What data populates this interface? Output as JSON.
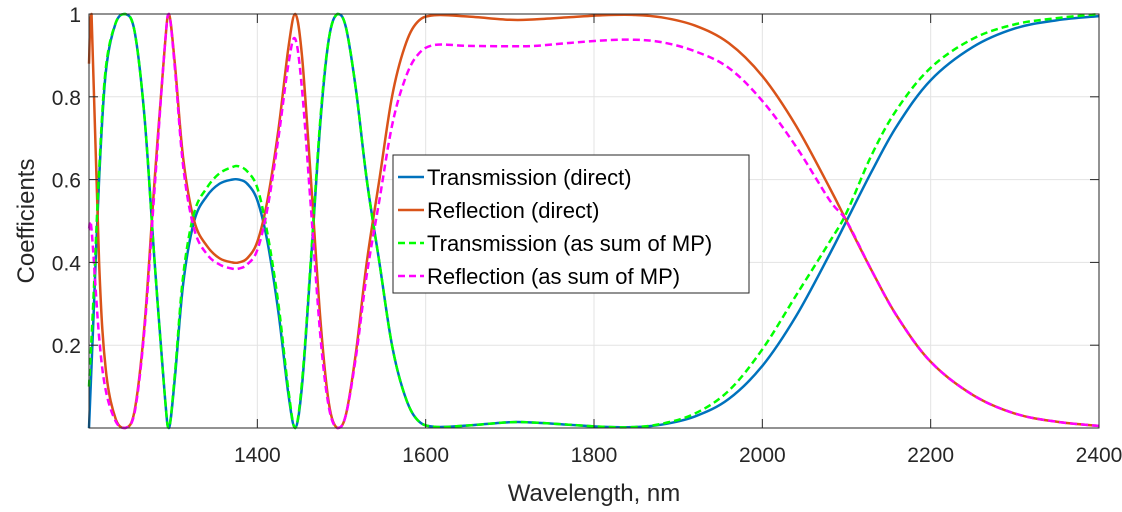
{
  "chart_data": {
    "type": "line",
    "xlabel": "Wavelength, nm",
    "ylabel": "Coefficients",
    "xlim": [
      1200,
      2400
    ],
    "ylim": [
      0,
      1
    ],
    "x_ticks": [
      1400,
      1600,
      1800,
      2000,
      2200,
      2400
    ],
    "y_ticks": [
      0.2,
      0.4,
      0.6,
      0.8,
      1
    ],
    "x_tick_labels": [
      "1400",
      "1600",
      "1800",
      "2000",
      "2200",
      "2400"
    ],
    "y_tick_labels": [
      "0.2",
      "0.4",
      "0.6",
      "0.8",
      "1"
    ],
    "grid": true,
    "legend_position": "center",
    "series": [
      {
        "name": "Transmission (direct)",
        "color": "#0072BD",
        "dash": "solid",
        "points": [
          [
            1200,
            0.0
          ],
          [
            1205,
            0.25
          ],
          [
            1212,
            0.6
          ],
          [
            1220,
            0.86
          ],
          [
            1232,
            0.98
          ],
          [
            1243,
            1.0
          ],
          [
            1254,
            0.96
          ],
          [
            1266,
            0.75
          ],
          [
            1278,
            0.4
          ],
          [
            1290,
            0.08
          ],
          [
            1295,
            0.0
          ],
          [
            1302,
            0.12
          ],
          [
            1312,
            0.35
          ],
          [
            1325,
            0.5
          ],
          [
            1340,
            0.56
          ],
          [
            1355,
            0.59
          ],
          [
            1370,
            0.6
          ],
          [
            1378,
            0.6
          ],
          [
            1388,
            0.59
          ],
          [
            1400,
            0.55
          ],
          [
            1412,
            0.45
          ],
          [
            1425,
            0.28
          ],
          [
            1437,
            0.08
          ],
          [
            1445,
            0.0
          ],
          [
            1453,
            0.1
          ],
          [
            1463,
            0.38
          ],
          [
            1475,
            0.74
          ],
          [
            1485,
            0.94
          ],
          [
            1495,
            1.0
          ],
          [
            1505,
            0.97
          ],
          [
            1517,
            0.82
          ],
          [
            1530,
            0.6
          ],
          [
            1545,
            0.4
          ],
          [
            1560,
            0.2
          ],
          [
            1575,
            0.08
          ],
          [
            1590,
            0.02
          ],
          [
            1610,
            0.003
          ],
          [
            1650,
            0.006
          ],
          [
            1700,
            0.014
          ],
          [
            1730,
            0.013
          ],
          [
            1770,
            0.008
          ],
          [
            1810,
            0.003
          ],
          [
            1845,
            0.002
          ],
          [
            1880,
            0.008
          ],
          [
            1920,
            0.028
          ],
          [
            1960,
            0.07
          ],
          [
            2000,
            0.15
          ],
          [
            2040,
            0.27
          ],
          [
            2080,
            0.42
          ],
          [
            2100,
            0.5
          ],
          [
            2130,
            0.62
          ],
          [
            2160,
            0.73
          ],
          [
            2200,
            0.84
          ],
          [
            2250,
            0.92
          ],
          [
            2300,
            0.965
          ],
          [
            2350,
            0.985
          ],
          [
            2400,
            0.995
          ]
        ]
      },
      {
        "name": "Reflection (direct)",
        "color": "#D95319",
        "dash": "solid",
        "points": [
          [
            1200,
            0.88
          ],
          [
            1203,
            1.0
          ],
          [
            1212,
            0.4
          ],
          [
            1220,
            0.14
          ],
          [
            1232,
            0.02
          ],
          [
            1243,
            0.0
          ],
          [
            1254,
            0.04
          ],
          [
            1266,
            0.25
          ],
          [
            1278,
            0.6
          ],
          [
            1290,
            0.92
          ],
          [
            1295,
            1.0
          ],
          [
            1302,
            0.88
          ],
          [
            1312,
            0.65
          ],
          [
            1325,
            0.5
          ],
          [
            1340,
            0.44
          ],
          [
            1355,
            0.41
          ],
          [
            1370,
            0.4
          ],
          [
            1378,
            0.4
          ],
          [
            1388,
            0.41
          ],
          [
            1400,
            0.45
          ],
          [
            1412,
            0.55
          ],
          [
            1425,
            0.72
          ],
          [
            1437,
            0.92
          ],
          [
            1445,
            1.0
          ],
          [
            1453,
            0.9
          ],
          [
            1463,
            0.62
          ],
          [
            1475,
            0.26
          ],
          [
            1485,
            0.06
          ],
          [
            1495,
            0.0
          ],
          [
            1505,
            0.03
          ],
          [
            1517,
            0.18
          ],
          [
            1530,
            0.4
          ],
          [
            1545,
            0.6
          ],
          [
            1560,
            0.8
          ],
          [
            1575,
            0.92
          ],
          [
            1590,
            0.98
          ],
          [
            1610,
            0.997
          ],
          [
            1650,
            0.994
          ],
          [
            1700,
            0.986
          ],
          [
            1730,
            0.987
          ],
          [
            1770,
            0.992
          ],
          [
            1810,
            0.997
          ],
          [
            1845,
            0.998
          ],
          [
            1880,
            0.992
          ],
          [
            1920,
            0.972
          ],
          [
            1960,
            0.93
          ],
          [
            2000,
            0.85
          ],
          [
            2040,
            0.73
          ],
          [
            2080,
            0.58
          ],
          [
            2100,
            0.5
          ],
          [
            2130,
            0.38
          ],
          [
            2160,
            0.27
          ],
          [
            2200,
            0.16
          ],
          [
            2250,
            0.08
          ],
          [
            2300,
            0.035
          ],
          [
            2350,
            0.015
          ],
          [
            2400,
            0.005
          ]
        ]
      },
      {
        "name": "Transmission (as sum of MP)",
        "color": "#00FF00",
        "dash": "dashed",
        "points": [
          [
            1200,
            0.1
          ],
          [
            1205,
            0.3
          ],
          [
            1212,
            0.62
          ],
          [
            1220,
            0.87
          ],
          [
            1232,
            0.98
          ],
          [
            1243,
            1.0
          ],
          [
            1254,
            0.96
          ],
          [
            1266,
            0.75
          ],
          [
            1278,
            0.4
          ],
          [
            1290,
            0.08
          ],
          [
            1295,
            0.0
          ],
          [
            1302,
            0.13
          ],
          [
            1312,
            0.37
          ],
          [
            1325,
            0.52
          ],
          [
            1340,
            0.58
          ],
          [
            1355,
            0.615
          ],
          [
            1370,
            0.63
          ],
          [
            1378,
            0.632
          ],
          [
            1388,
            0.62
          ],
          [
            1400,
            0.58
          ],
          [
            1412,
            0.47
          ],
          [
            1425,
            0.3
          ],
          [
            1437,
            0.09
          ],
          [
            1445,
            0.0
          ],
          [
            1453,
            0.11
          ],
          [
            1463,
            0.39
          ],
          [
            1475,
            0.75
          ],
          [
            1485,
            0.94
          ],
          [
            1495,
            1.0
          ],
          [
            1505,
            0.97
          ],
          [
            1517,
            0.82
          ],
          [
            1530,
            0.6
          ],
          [
            1545,
            0.4
          ],
          [
            1560,
            0.2
          ],
          [
            1575,
            0.08
          ],
          [
            1590,
            0.02
          ],
          [
            1610,
            0.003
          ],
          [
            1650,
            0.006
          ],
          [
            1700,
            0.014
          ],
          [
            1730,
            0.013
          ],
          [
            1770,
            0.008
          ],
          [
            1810,
            0.003
          ],
          [
            1845,
            0.002
          ],
          [
            1880,
            0.01
          ],
          [
            1920,
            0.035
          ],
          [
            1960,
            0.09
          ],
          [
            2000,
            0.19
          ],
          [
            2040,
            0.32
          ],
          [
            2080,
            0.45
          ],
          [
            2100,
            0.52
          ],
          [
            2130,
            0.66
          ],
          [
            2160,
            0.77
          ],
          [
            2200,
            0.87
          ],
          [
            2250,
            0.94
          ],
          [
            2300,
            0.975
          ],
          [
            2350,
            0.99
          ],
          [
            2400,
            1.0
          ]
        ]
      },
      {
        "name": "Reflection (as sum of MP)",
        "color": "#FF00FF",
        "dash": "dashed",
        "points": [
          [
            1200,
            0.48
          ],
          [
            1203,
            0.48
          ],
          [
            1212,
            0.22
          ],
          [
            1220,
            0.09
          ],
          [
            1232,
            0.015
          ],
          [
            1243,
            0.0
          ],
          [
            1254,
            0.035
          ],
          [
            1266,
            0.24
          ],
          [
            1278,
            0.58
          ],
          [
            1290,
            0.92
          ],
          [
            1295,
            1.0
          ],
          [
            1302,
            0.87
          ],
          [
            1312,
            0.63
          ],
          [
            1325,
            0.48
          ],
          [
            1340,
            0.42
          ],
          [
            1355,
            0.395
          ],
          [
            1370,
            0.385
          ],
          [
            1378,
            0.385
          ],
          [
            1388,
            0.395
          ],
          [
            1400,
            0.43
          ],
          [
            1412,
            0.53
          ],
          [
            1425,
            0.7
          ],
          [
            1437,
            0.88
          ],
          [
            1445,
            0.94
          ],
          [
            1453,
            0.82
          ],
          [
            1463,
            0.55
          ],
          [
            1475,
            0.22
          ],
          [
            1485,
            0.05
          ],
          [
            1495,
            0.0
          ],
          [
            1505,
            0.03
          ],
          [
            1517,
            0.17
          ],
          [
            1530,
            0.37
          ],
          [
            1545,
            0.55
          ],
          [
            1560,
            0.73
          ],
          [
            1575,
            0.84
          ],
          [
            1590,
            0.9
          ],
          [
            1610,
            0.925
          ],
          [
            1650,
            0.923
          ],
          [
            1700,
            0.922
          ],
          [
            1730,
            0.923
          ],
          [
            1770,
            0.93
          ],
          [
            1810,
            0.936
          ],
          [
            1845,
            0.938
          ],
          [
            1880,
            0.932
          ],
          [
            1920,
            0.91
          ],
          [
            1960,
            0.87
          ],
          [
            2000,
            0.79
          ],
          [
            2040,
            0.68
          ],
          [
            2080,
            0.55
          ],
          [
            2100,
            0.5
          ],
          [
            2130,
            0.38
          ],
          [
            2160,
            0.27
          ],
          [
            2200,
            0.16
          ],
          [
            2250,
            0.08
          ],
          [
            2300,
            0.035
          ],
          [
            2350,
            0.015
          ],
          [
            2400,
            0.005
          ]
        ]
      }
    ]
  }
}
